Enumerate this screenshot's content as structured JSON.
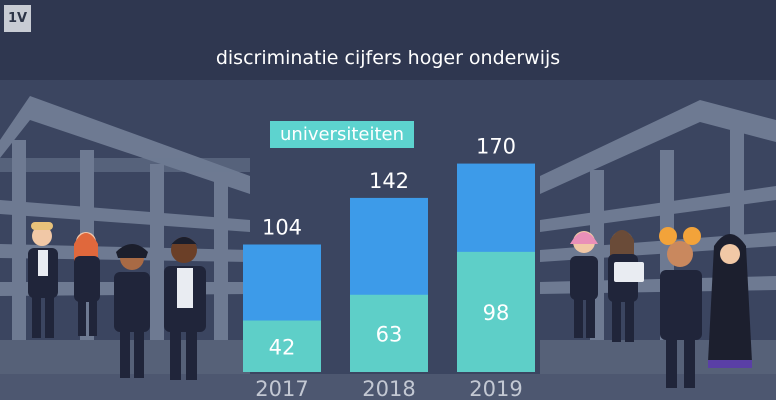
{
  "logo": {
    "text": "1V"
  },
  "title": "discriminatie cijfers hoger onderwijs",
  "colors": {
    "background": "#3b4560",
    "header_band": "#2f3750",
    "total_bar": "#3d9be9",
    "university_bar": "#5ecfc8",
    "badge": "#5dd3cf",
    "building": "#6e7a92"
  },
  "chart_data": {
    "type": "bar",
    "title": "discriminatie cijfers hoger onderwijs",
    "categories": [
      "2017",
      "2018",
      "2019"
    ],
    "series": [
      {
        "name": "",
        "values": [
          104,
          142,
          170
        ]
      },
      {
        "name": "universiteiten",
        "values": [
          42,
          63,
          98
        ]
      }
    ],
    "ylim": [
      0,
      180
    ],
    "grid": false,
    "legend": "top-left"
  }
}
